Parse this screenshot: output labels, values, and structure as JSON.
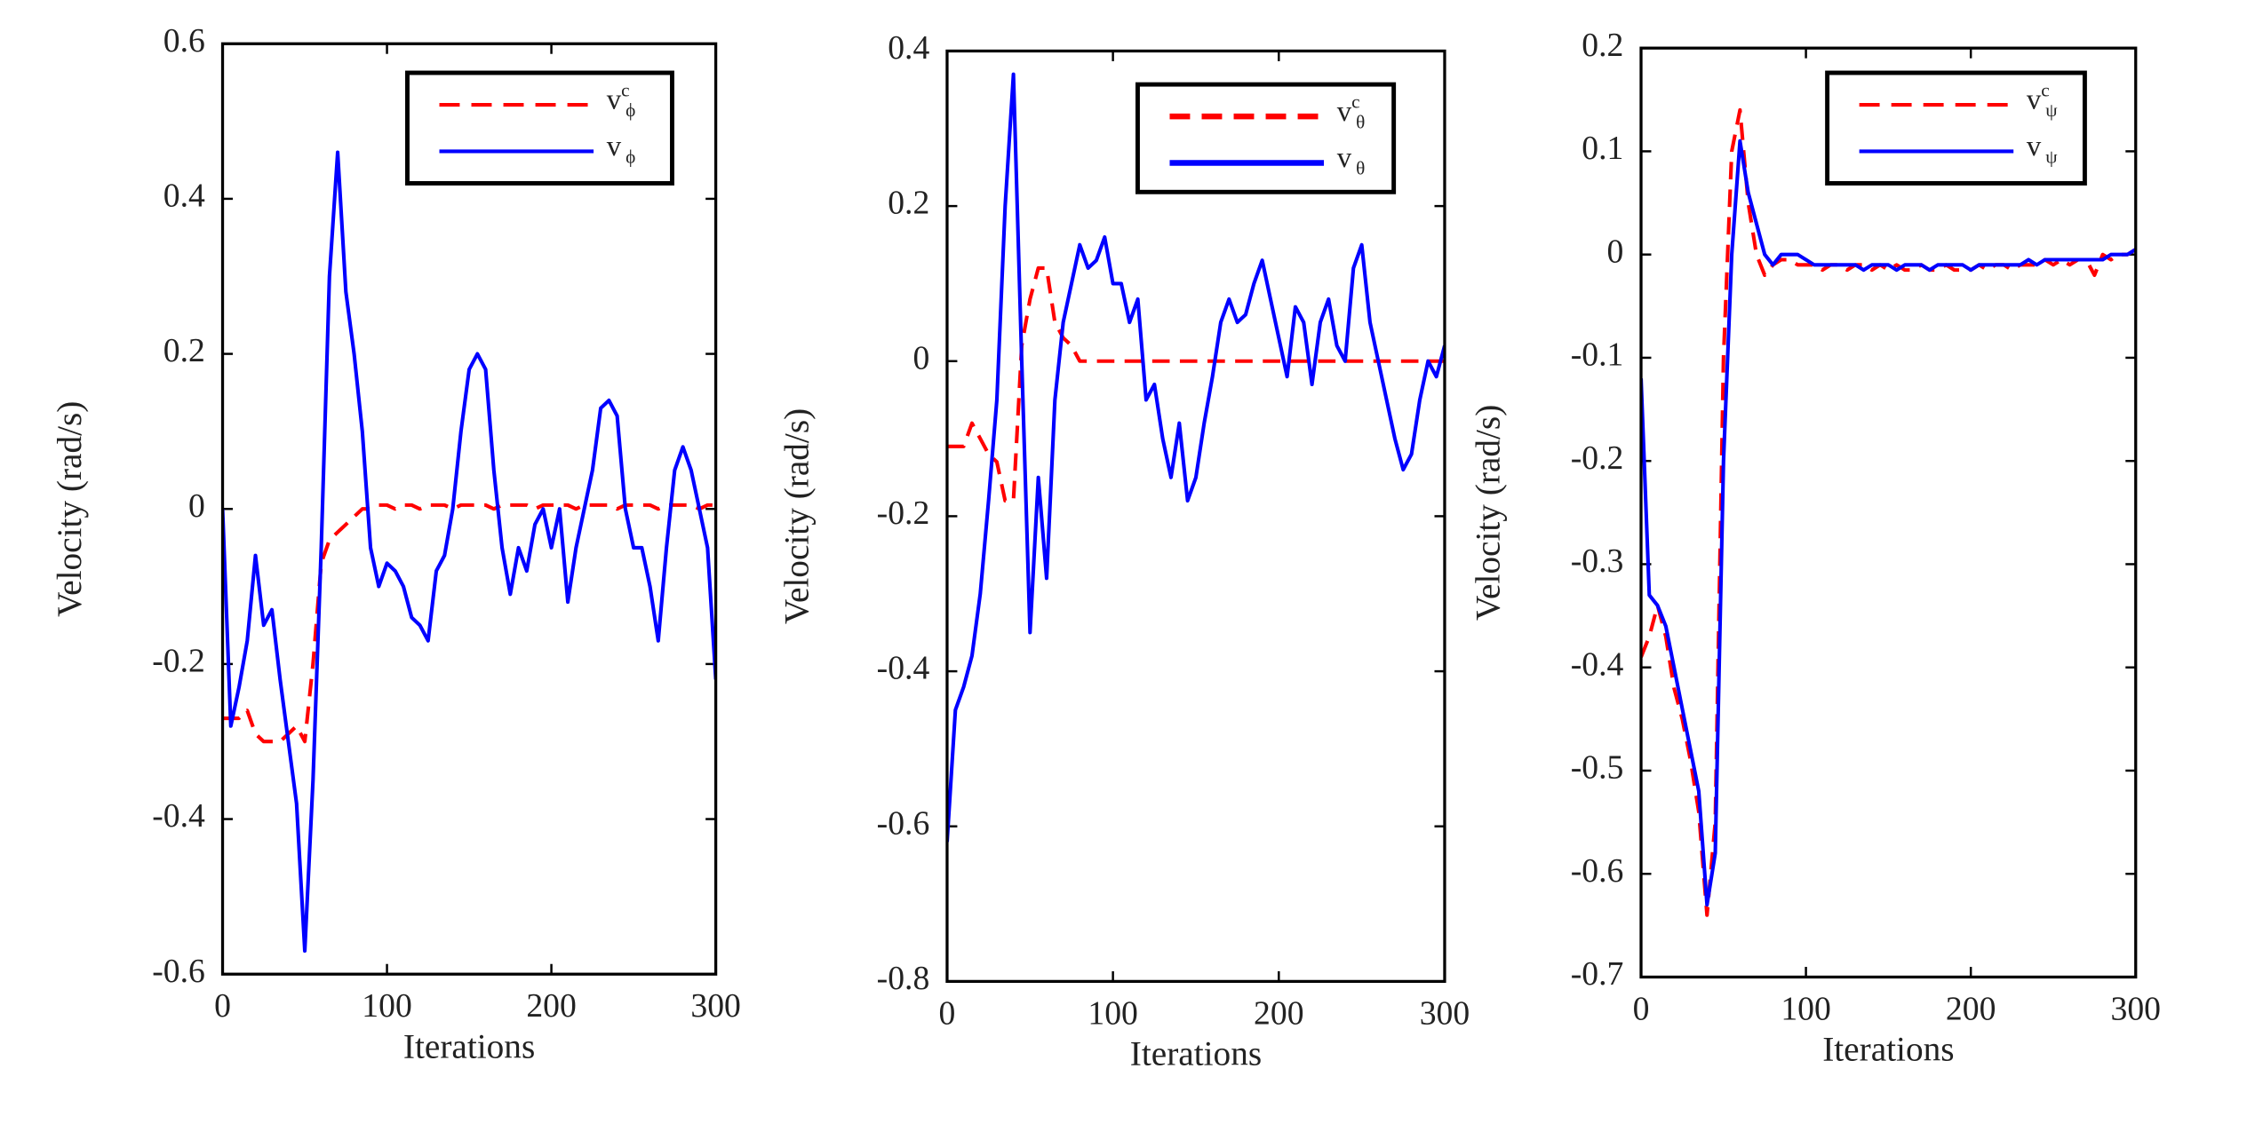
{
  "chart_data": [
    {
      "type": "line",
      "xlabel": "Iterations",
      "ylabel": "Velocity (rad/s)",
      "x": [
        0,
        5,
        10,
        15,
        20,
        25,
        30,
        35,
        40,
        45,
        50,
        55,
        60,
        65,
        70,
        75,
        80,
        85,
        90,
        95,
        100,
        105,
        110,
        115,
        120,
        125,
        130,
        135,
        140,
        145,
        150,
        155,
        160,
        165,
        170,
        175,
        180,
        185,
        190,
        195,
        200,
        205,
        210,
        215,
        220,
        225,
        230,
        235,
        240,
        245,
        250,
        255,
        260,
        265,
        270,
        275,
        280,
        285,
        290,
        295,
        300
      ],
      "xlim": [
        0,
        300
      ],
      "xticks": [
        0,
        100,
        200,
        300
      ],
      "ylim": [
        -0.6,
        0.6
      ],
      "yticks": [
        -0.6,
        -0.4,
        -0.2,
        0,
        0.2,
        0.4,
        0.6
      ],
      "legend": "upper right",
      "series": [
        {
          "name": "v",
          "sup": "c",
          "sub": "ϕ",
          "color": "#ff0000",
          "dashed": true,
          "values": [
            -0.27,
            -0.27,
            -0.27,
            -0.26,
            -0.29,
            -0.3,
            -0.3,
            -0.3,
            -0.29,
            -0.28,
            -0.3,
            -0.2,
            -0.07,
            -0.04,
            -0.03,
            -0.02,
            -0.01,
            0,
            0,
            0.005,
            0.005,
            0,
            0.005,
            0.005,
            0,
            0.005,
            0.005,
            0.005,
            0,
            0.005,
            0.005,
            0.005,
            0.005,
            0,
            0.005,
            0.005,
            0.005,
            0.005,
            0,
            0.005,
            0.005,
            0.005,
            0.005,
            0,
            0.005,
            0.005,
            0.005,
            0.005,
            0,
            0.005,
            0.005,
            0.005,
            0.005,
            0,
            0.005,
            0.005,
            0.005,
            0.005,
            0,
            0.005,
            0.005
          ]
        },
        {
          "name": "v",
          "sub": "ϕ",
          "color": "#0000ff",
          "dashed": false,
          "values": [
            0,
            -0.28,
            -0.23,
            -0.17,
            -0.06,
            -0.15,
            -0.13,
            -0.22,
            -0.3,
            -0.38,
            -0.57,
            -0.35,
            -0.05,
            0.3,
            0.46,
            0.28,
            0.2,
            0.1,
            -0.05,
            -0.1,
            -0.07,
            -0.08,
            -0.1,
            -0.14,
            -0.15,
            -0.17,
            -0.08,
            -0.06,
            0,
            0.1,
            0.18,
            0.2,
            0.18,
            0.05,
            -0.05,
            -0.11,
            -0.05,
            -0.08,
            -0.02,
            0,
            -0.05,
            0,
            -0.12,
            -0.05,
            0,
            0.05,
            0.13,
            0.14,
            0.12,
            0,
            -0.05,
            -0.05,
            -0.1,
            -0.17,
            -0.05,
            0.05,
            0.08,
            0.05,
            0,
            -0.05,
            -0.22
          ]
        }
      ]
    },
    {
      "type": "line",
      "xlabel": "Iterations",
      "ylabel": "Velocity (rad/s)",
      "x": [
        0,
        5,
        10,
        15,
        20,
        25,
        30,
        35,
        40,
        45,
        50,
        55,
        60,
        65,
        70,
        75,
        80,
        85,
        90,
        95,
        100,
        105,
        110,
        115,
        120,
        125,
        130,
        135,
        140,
        145,
        150,
        155,
        160,
        165,
        170,
        175,
        180,
        185,
        190,
        195,
        200,
        205,
        210,
        215,
        220,
        225,
        230,
        235,
        240,
        245,
        250,
        255,
        260,
        265,
        270,
        275,
        280,
        285,
        290,
        295,
        300
      ],
      "xlim": [
        0,
        300
      ],
      "xticks": [
        0,
        100,
        200,
        300
      ],
      "ylim": [
        -0.8,
        0.4
      ],
      "yticks": [
        -0.8,
        -0.6,
        -0.4,
        -0.2,
        0,
        0.2,
        0.4
      ],
      "legend": "upper right",
      "series": [
        {
          "name": "v",
          "sup": "c",
          "sub": "θ",
          "color": "#ff0000",
          "dashed": true,
          "values": [
            -0.11,
            -0.11,
            -0.11,
            -0.08,
            -0.1,
            -0.12,
            -0.13,
            -0.18,
            -0.18,
            0.02,
            0.08,
            0.12,
            0.12,
            0.05,
            0.03,
            0.02,
            0,
            0,
            0,
            0,
            0,
            0,
            0,
            0,
            0,
            0,
            0,
            0,
            0,
            0,
            0,
            0,
            0,
            0,
            0,
            0,
            0,
            0,
            0,
            0,
            0,
            0,
            0,
            0,
            0,
            0,
            0,
            0,
            0,
            0,
            0,
            0,
            0,
            0,
            0,
            0,
            0,
            0,
            0,
            0,
            0
          ]
        },
        {
          "name": "v",
          "sub": "θ",
          "color": "#0000ff",
          "dashed": false,
          "values": [
            -0.62,
            -0.45,
            -0.42,
            -0.38,
            -0.3,
            -0.18,
            -0.05,
            0.2,
            0.37,
            0,
            -0.35,
            -0.15,
            -0.28,
            -0.05,
            0.05,
            0.1,
            0.15,
            0.12,
            0.13,
            0.16,
            0.1,
            0.1,
            0.05,
            0.08,
            -0.05,
            -0.03,
            -0.1,
            -0.15,
            -0.08,
            -0.18,
            -0.15,
            -0.08,
            -0.02,
            0.05,
            0.08,
            0.05,
            0.06,
            0.1,
            0.13,
            0.08,
            0.03,
            -0.02,
            0.07,
            0.05,
            -0.03,
            0.05,
            0.08,
            0.02,
            0,
            0.12,
            0.15,
            0.05,
            0,
            -0.05,
            -0.1,
            -0.14,
            -0.12,
            -0.05,
            0,
            -0.02,
            0.02
          ]
        }
      ]
    },
    {
      "type": "line",
      "xlabel": "Iterations",
      "ylabel": "Velocity (rad/s)",
      "x": [
        0,
        5,
        10,
        15,
        20,
        25,
        30,
        35,
        40,
        45,
        50,
        55,
        60,
        65,
        70,
        75,
        80,
        85,
        90,
        95,
        100,
        105,
        110,
        115,
        120,
        125,
        130,
        135,
        140,
        145,
        150,
        155,
        160,
        165,
        170,
        175,
        180,
        185,
        190,
        195,
        200,
        205,
        210,
        215,
        220,
        225,
        230,
        235,
        240,
        245,
        250,
        255,
        260,
        265,
        270,
        275,
        280,
        285,
        290,
        295,
        300
      ],
      "xlim": [
        0,
        300
      ],
      "xticks": [
        0,
        100,
        200,
        300
      ],
      "ylim": [
        -0.7,
        0.2
      ],
      "yticks": [
        -0.7,
        -0.6,
        -0.5,
        -0.4,
        -0.3,
        -0.2,
        -0.1,
        0,
        0.1,
        0.2
      ],
      "legend": "upper right",
      "series": [
        {
          "name": "v",
          "sup": "c",
          "sub": "ψ",
          "color": "#ff0000",
          "dashed": true,
          "values": [
            -0.39,
            -0.37,
            -0.34,
            -0.37,
            -0.42,
            -0.45,
            -0.49,
            -0.54,
            -0.64,
            -0.55,
            -0.1,
            0.1,
            0.14,
            0.05,
            0,
            -0.02,
            -0.01,
            -0.005,
            -0.005,
            -0.01,
            -0.01,
            -0.01,
            -0.015,
            -0.01,
            -0.01,
            -0.015,
            -0.01,
            -0.01,
            -0.015,
            -0.01,
            -0.015,
            -0.01,
            -0.015,
            -0.015,
            -0.01,
            -0.015,
            -0.015,
            -0.01,
            -0.015,
            -0.015,
            -0.015,
            -0.01,
            -0.015,
            -0.01,
            -0.01,
            -0.015,
            -0.01,
            -0.01,
            -0.01,
            -0.005,
            -0.01,
            -0.005,
            -0.01,
            -0.005,
            -0.005,
            -0.02,
            0,
            -0.005,
            0,
            0,
            0.005
          ]
        },
        {
          "name": "v",
          "sub": "ψ",
          "color": "#0000ff",
          "dashed": false,
          "values": [
            -0.12,
            -0.33,
            -0.34,
            -0.36,
            -0.4,
            -0.44,
            -0.48,
            -0.52,
            -0.63,
            -0.58,
            -0.2,
            0,
            0.11,
            0.06,
            0.03,
            0,
            -0.01,
            0,
            0,
            0,
            -0.005,
            -0.01,
            -0.01,
            -0.01,
            -0.01,
            -0.01,
            -0.01,
            -0.015,
            -0.01,
            -0.01,
            -0.01,
            -0.015,
            -0.01,
            -0.01,
            -0.01,
            -0.015,
            -0.01,
            -0.01,
            -0.01,
            -0.01,
            -0.015,
            -0.01,
            -0.01,
            -0.01,
            -0.01,
            -0.01,
            -0.01,
            -0.005,
            -0.01,
            -0.005,
            -0.005,
            -0.005,
            -0.005,
            -0.005,
            -0.005,
            -0.005,
            -0.005,
            0,
            0,
            0,
            0.005
          ]
        }
      ]
    }
  ]
}
